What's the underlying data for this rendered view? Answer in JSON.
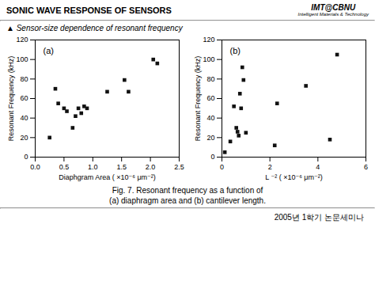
{
  "title": "SONIC WAVE RESPONSE OF SENSORS",
  "subtitle": "▲ Sensor-size dependence of resonant frequency",
  "annotations": [
    "IMT@",
    "CBNU",
    "Intelligent Materials & Technology",
    "Fig. 7. Resonant frequency as a function of",
    "(a) diaphragm area and (b) cantilever length.",
    "2005년 1학기 논문세미나"
  ],
  "chart_data": [
    {
      "type": "scatter",
      "annotations": [
        "(a)"
      ],
      "xlabel": "Diaphgram Area ( ×10⁻⁶ μm⁻²)",
      "ylabel": "Resonant Frequency (kHz)",
      "x": [
        0.25,
        0.35,
        0.4,
        0.5,
        0.55,
        0.65,
        0.7,
        0.75,
        0.8,
        0.85,
        0.9,
        1.25,
        1.55,
        1.62,
        2.05,
        2.12
      ],
      "values": [
        20,
        70,
        55,
        50,
        47,
        30,
        42,
        50,
        45,
        52,
        50,
        67,
        79,
        67,
        100,
        96
      ],
      "color": "#111111",
      "marker": "square",
      "xlim": [
        0,
        2.5
      ],
      "ylim": [
        0,
        120
      ],
      "xticks": [
        {
          "value": 0,
          "label": "0.0"
        },
        0.5,
        {
          "value": 1,
          "label": "1.0"
        },
        1.5,
        {
          "value": 2,
          "label": "2.0"
        },
        2.5
      ],
      "yticks": [
        0,
        20,
        40,
        60,
        80,
        100,
        120
      ]
    },
    {
      "type": "scatter",
      "annotations": [
        "(b)"
      ],
      "xlabel": "L ⁻² ( ×10⁻⁶ μm⁻²)",
      "ylabel": "Resonant Frequency (kHz)",
      "x": [
        0.12,
        0.35,
        0.5,
        0.6,
        0.65,
        0.7,
        0.75,
        0.8,
        0.85,
        0.9,
        1.0,
        2.2,
        2.3,
        3.5,
        4.5,
        4.8
      ],
      "values": [
        5,
        16,
        52,
        30,
        26,
        22,
        65,
        50,
        92,
        79,
        25,
        12,
        55,
        73,
        18,
        105
      ],
      "color": "#111111",
      "marker": "square",
      "xlim": [
        0,
        6
      ],
      "ylim": [
        0,
        120
      ],
      "xticks": [
        0,
        2,
        4,
        6
      ],
      "yticks": [
        0,
        20,
        40,
        60,
        80,
        100,
        120
      ]
    }
  ]
}
